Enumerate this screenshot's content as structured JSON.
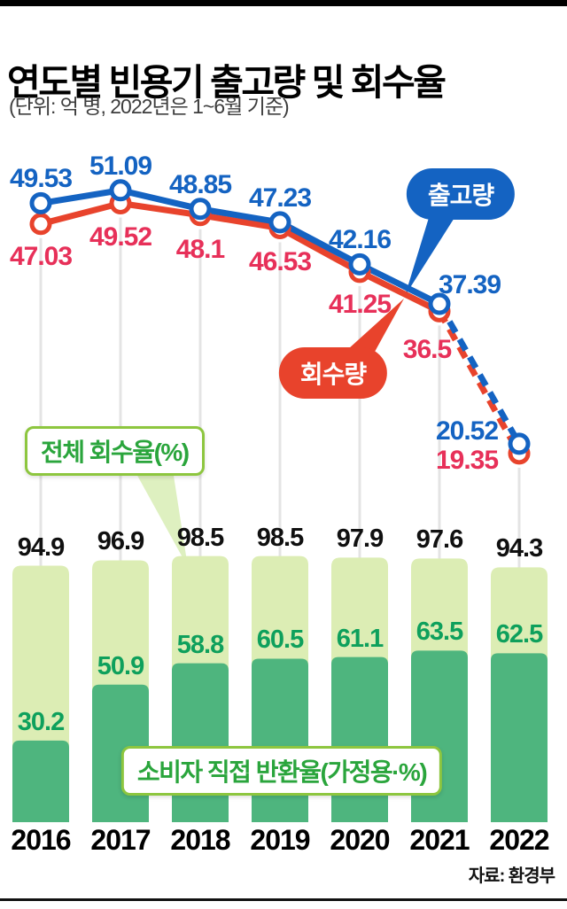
{
  "header": {
    "title": "연도별 빈용기 출고량 및 회수율",
    "subtitle": "(단위: 억 병, 2022년은 1~6월 기준)"
  },
  "labels": {
    "shipment_badge": "출고량",
    "recovery_badge": "회수량",
    "total_recovery_box": "전체 회수율(%)",
    "consumer_return_box": "소비자 직접 반환율",
    "consumer_return_box_suffix": "(가정용·%)"
  },
  "source": "자료: 환경부",
  "colors": {
    "shipment_blue": "#1463c2",
    "recovery_red": "#e8432c",
    "shipment_value_text": "#1463c2",
    "recovery_value_text": "#e73059",
    "bar_light_green": "#dcedb4",
    "bar_dark_green": "#4eb57e",
    "green_value_text": "#0ea05c",
    "box_text_green": "#2aa53c",
    "box_border_green": "#8dc63f",
    "grid_line": "#e4e4e4",
    "bar_value_text": "#101010"
  },
  "chart_data": [
    {
      "type": "line",
      "title": "연도별 빈용기 출고량 및 회수율",
      "categories": [
        "2016",
        "2017",
        "2018",
        "2019",
        "2020",
        "2021",
        "2022"
      ],
      "series": [
        {
          "name": "출고량",
          "color": "#1463c2",
          "values": [
            49.53,
            51.09,
            48.85,
            47.23,
            42.16,
            37.39,
            20.52
          ]
        },
        {
          "name": "회수량",
          "color": "#e8432c",
          "values": [
            47.03,
            49.52,
            48.1,
            46.53,
            41.25,
            36.5,
            19.35
          ]
        }
      ],
      "ylim": [
        0,
        55
      ],
      "note": "2021→2022 구간 점선(2022년은 1~6월 기준)"
    },
    {
      "type": "bar",
      "categories": [
        "2016",
        "2017",
        "2018",
        "2019",
        "2020",
        "2021",
        "2022"
      ],
      "series": [
        {
          "name": "전체 회수율(%)",
          "color": "#dcedb4",
          "values": [
            94.9,
            96.9,
            98.5,
            98.5,
            97.9,
            97.6,
            94.3
          ]
        },
        {
          "name": "소비자 직접 반환율(가정용·%)",
          "color": "#4eb57e",
          "values": [
            30.2,
            50.9,
            58.8,
            60.5,
            61.1,
            63.5,
            62.5
          ]
        }
      ],
      "ylim": [
        0,
        100
      ]
    }
  ]
}
